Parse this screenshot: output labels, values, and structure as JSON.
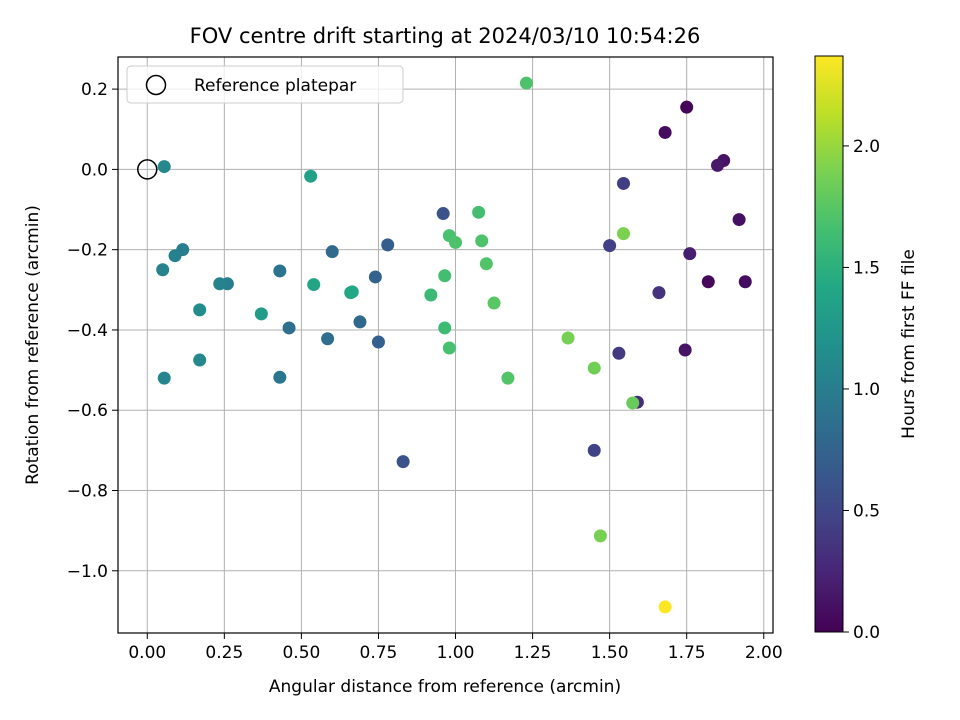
{
  "chart_data": {
    "type": "scatter",
    "title": "FOV centre drift starting at 2024/03/10 10:54:26",
    "xlabel": "Angular distance from reference (arcmin)",
    "ylabel": "Rotation from reference (arcmin)",
    "xlim": [
      -0.095,
      2.03
    ],
    "ylim": [
      -1.155,
      0.28
    ],
    "x_ticks": [
      0.0,
      0.25,
      0.5,
      0.75,
      1.0,
      1.25,
      1.5,
      1.75,
      2.0
    ],
    "x_tick_labels": [
      "0.00",
      "0.25",
      "0.50",
      "0.75",
      "1.00",
      "1.25",
      "1.50",
      "1.75",
      "2.00"
    ],
    "y_ticks": [
      0.2,
      0.0,
      -0.2,
      -0.4,
      -0.6,
      -0.8,
      -1.0
    ],
    "y_tick_labels": [
      "0.2",
      "0.0",
      "−0.2",
      "−0.4",
      "−0.6",
      "−0.8",
      "−1.0"
    ],
    "grid": true,
    "legend": {
      "placement": "top-left",
      "entries": [
        {
          "label": "Reference platepar",
          "marker": "open-circle"
        }
      ]
    },
    "reference_point": [
      0.0,
      0.0
    ],
    "colorbar": {
      "label": "Hours from first FF file",
      "colormap": "viridis",
      "range": [
        0.0,
        2.37
      ],
      "ticks": [
        0.0,
        0.5,
        1.0,
        1.5,
        2.0
      ],
      "tick_labels": [
        "0.0",
        "0.5",
        "1.0",
        "1.5",
        "2.0"
      ]
    },
    "points": [
      {
        "x": 1.75,
        "y": 0.155,
        "h": 0.02
      },
      {
        "x": 1.68,
        "y": 0.092,
        "h": 0.07
      },
      {
        "x": 1.87,
        "y": 0.022,
        "h": 0.12
      },
      {
        "x": 1.85,
        "y": 0.01,
        "h": 0.15
      },
      {
        "x": 1.92,
        "y": -0.125,
        "h": 0.1
      },
      {
        "x": 1.76,
        "y": -0.21,
        "h": 0.2
      },
      {
        "x": 1.82,
        "y": -0.28,
        "h": 0.05
      },
      {
        "x": 1.94,
        "y": -0.28,
        "h": 0.08
      },
      {
        "x": 1.745,
        "y": -0.45,
        "h": 0.12
      },
      {
        "x": 1.66,
        "y": -0.307,
        "h": 0.35
      },
      {
        "x": 1.545,
        "y": -0.035,
        "h": 0.43
      },
      {
        "x": 1.5,
        "y": -0.19,
        "h": 0.45
      },
      {
        "x": 1.53,
        "y": -0.458,
        "h": 0.4
      },
      {
        "x": 1.59,
        "y": -0.58,
        "h": 0.28
      },
      {
        "x": 1.45,
        "y": -0.7,
        "h": 0.47
      },
      {
        "x": 0.83,
        "y": -0.728,
        "h": 0.6
      },
      {
        "x": 0.96,
        "y": -0.11,
        "h": 0.6
      },
      {
        "x": 0.78,
        "y": -0.188,
        "h": 0.7
      },
      {
        "x": 0.74,
        "y": -0.268,
        "h": 0.75
      },
      {
        "x": 0.75,
        "y": -0.43,
        "h": 0.72
      },
      {
        "x": 0.69,
        "y": -0.38,
        "h": 0.8
      },
      {
        "x": 0.6,
        "y": -0.205,
        "h": 0.82
      },
      {
        "x": 0.585,
        "y": -0.422,
        "h": 0.85
      },
      {
        "x": 0.46,
        "y": -0.395,
        "h": 0.87
      },
      {
        "x": 0.43,
        "y": -0.253,
        "h": 0.9
      },
      {
        "x": 0.43,
        "y": -0.518,
        "h": 0.92
      },
      {
        "x": 0.26,
        "y": -0.285,
        "h": 1.0
      },
      {
        "x": 0.235,
        "y": -0.285,
        "h": 1.05
      },
      {
        "x": 0.17,
        "y": -0.35,
        "h": 1.15
      },
      {
        "x": 0.17,
        "y": -0.475,
        "h": 1.1
      },
      {
        "x": 0.115,
        "y": -0.2,
        "h": 1.0
      },
      {
        "x": 0.09,
        "y": -0.215,
        "h": 1.02
      },
      {
        "x": 0.05,
        "y": -0.25,
        "h": 1.05
      },
      {
        "x": 0.055,
        "y": -0.52,
        "h": 1.08
      },
      {
        "x": 0.055,
        "y": 0.007,
        "h": 1.1
      },
      {
        "x": 0.37,
        "y": -0.36,
        "h": 1.3
      },
      {
        "x": 0.53,
        "y": -0.017,
        "h": 1.35
      },
      {
        "x": 0.54,
        "y": -0.287,
        "h": 1.38
      },
      {
        "x": 0.66,
        "y": -0.307,
        "h": 1.4
      },
      {
        "x": 0.665,
        "y": -0.305,
        "h": 1.42
      },
      {
        "x": 0.92,
        "y": -0.313,
        "h": 1.6
      },
      {
        "x": 0.965,
        "y": -0.265,
        "h": 1.65
      },
      {
        "x": 0.965,
        "y": -0.395,
        "h": 1.62
      },
      {
        "x": 0.98,
        "y": -0.445,
        "h": 1.67
      },
      {
        "x": 0.98,
        "y": -0.165,
        "h": 1.68
      },
      {
        "x": 1.0,
        "y": -0.182,
        "h": 1.7
      },
      {
        "x": 1.075,
        "y": -0.107,
        "h": 1.65
      },
      {
        "x": 1.085,
        "y": -0.178,
        "h": 1.7
      },
      {
        "x": 1.1,
        "y": -0.235,
        "h": 1.72
      },
      {
        "x": 1.125,
        "y": -0.333,
        "h": 1.75
      },
      {
        "x": 1.17,
        "y": -0.52,
        "h": 1.72
      },
      {
        "x": 1.23,
        "y": 0.215,
        "h": 1.7
      },
      {
        "x": 1.365,
        "y": -0.42,
        "h": 1.88
      },
      {
        "x": 1.45,
        "y": -0.495,
        "h": 1.85
      },
      {
        "x": 1.545,
        "y": -0.16,
        "h": 1.9
      },
      {
        "x": 1.575,
        "y": -0.582,
        "h": 1.82
      },
      {
        "x": 1.47,
        "y": -0.913,
        "h": 1.88
      },
      {
        "x": 1.68,
        "y": -1.09,
        "h": 2.37
      }
    ]
  }
}
